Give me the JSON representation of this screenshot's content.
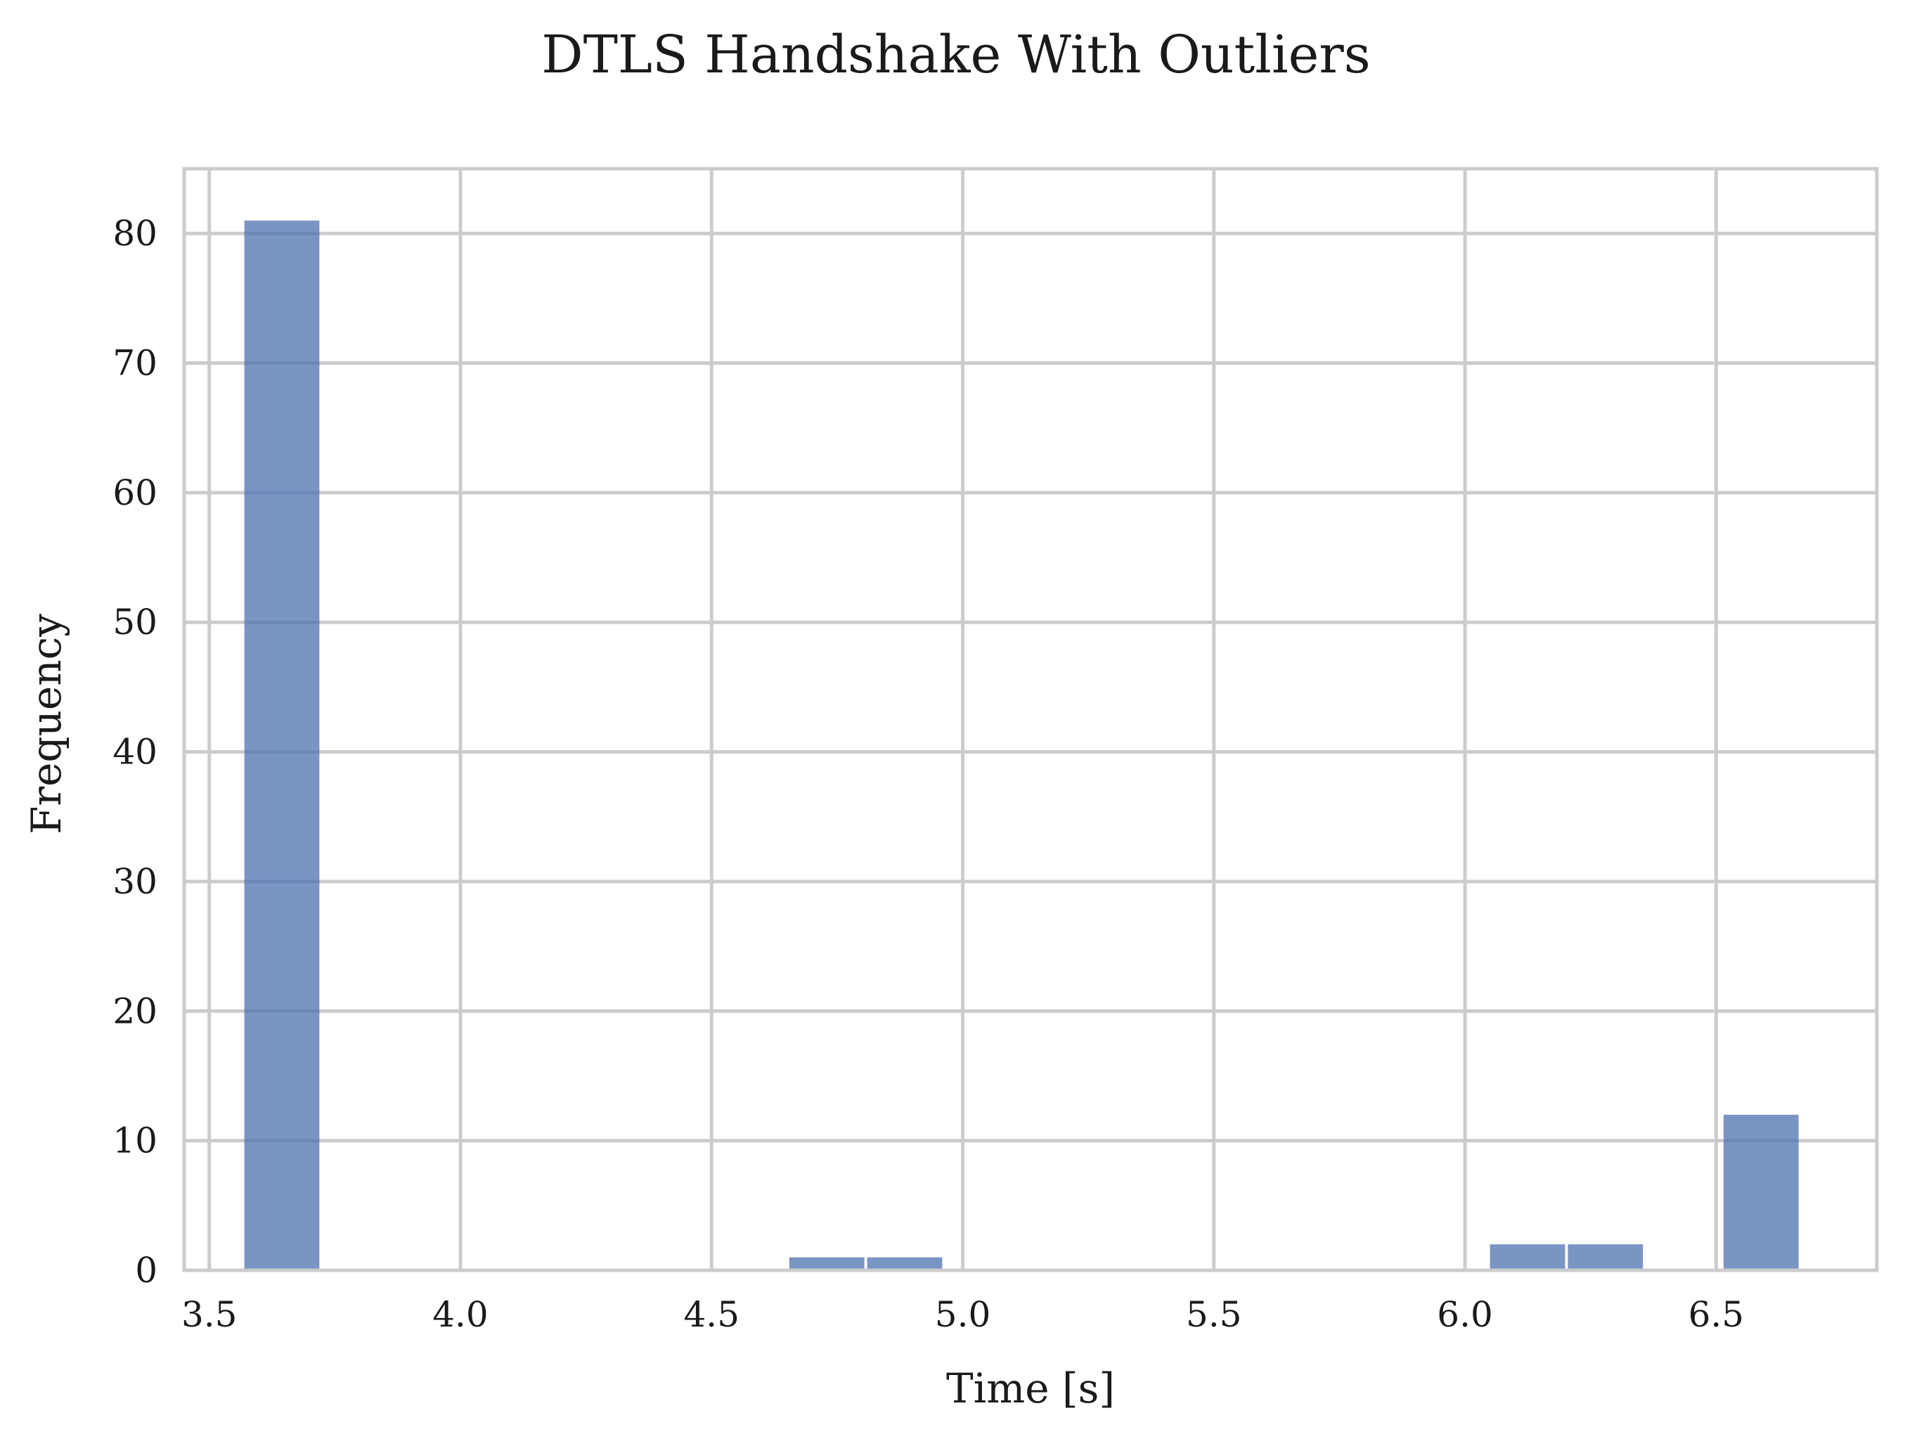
{
  "chart_data": {
    "type": "bar",
    "title": "DTLS Handshake With Outliers",
    "xlabel": "Time [s]",
    "ylabel": "Frequency",
    "xlim": [
      3.45,
      6.82
    ],
    "ylim": [
      0,
      85
    ],
    "xticks": [
      "3.5",
      "4.0",
      "4.5",
      "5.0",
      "5.5",
      "6.0",
      "6.5"
    ],
    "yticks": [
      "0",
      "10",
      "20",
      "30",
      "40",
      "50",
      "60",
      "70",
      "80"
    ],
    "grid": true,
    "bar_color": "#4c72b0",
    "bins": [
      {
        "start": 3.567,
        "end": 3.722,
        "count": 81
      },
      {
        "start": 4.652,
        "end": 4.807,
        "count": 1
      },
      {
        "start": 4.807,
        "end": 4.962,
        "count": 1
      },
      {
        "start": 6.047,
        "end": 6.202,
        "count": 2
      },
      {
        "start": 6.202,
        "end": 6.357,
        "count": 2
      },
      {
        "start": 6.512,
        "end": 6.667,
        "count": 12
      }
    ]
  }
}
